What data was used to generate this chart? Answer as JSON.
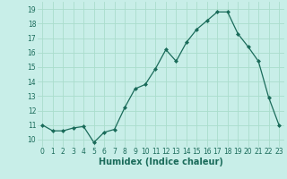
{
  "x": [
    0,
    1,
    2,
    3,
    4,
    5,
    6,
    7,
    8,
    9,
    10,
    11,
    12,
    13,
    14,
    15,
    16,
    17,
    18,
    19,
    20,
    21,
    22,
    23
  ],
  "y": [
    11.0,
    10.6,
    10.6,
    10.8,
    10.9,
    9.8,
    10.5,
    10.7,
    12.2,
    13.5,
    13.8,
    14.9,
    16.2,
    15.4,
    16.7,
    17.6,
    18.2,
    18.8,
    18.8,
    17.3,
    16.4,
    15.4,
    12.9,
    11.0
  ],
  "line_color": "#1a6b5a",
  "marker": "D",
  "marker_size": 2.0,
  "bg_color": "#c8eee8",
  "grid_color": "#aaddcc",
  "xlabel": "Humidex (Indice chaleur)",
  "xlabel_fontsize": 7.0,
  "tick_fontsize": 5.5,
  "ylabel_ticks": [
    10,
    11,
    12,
    13,
    14,
    15,
    16,
    17,
    18,
    19
  ],
  "xlim": [
    -0.5,
    23.5
  ],
  "ylim": [
    9.5,
    19.5
  ]
}
